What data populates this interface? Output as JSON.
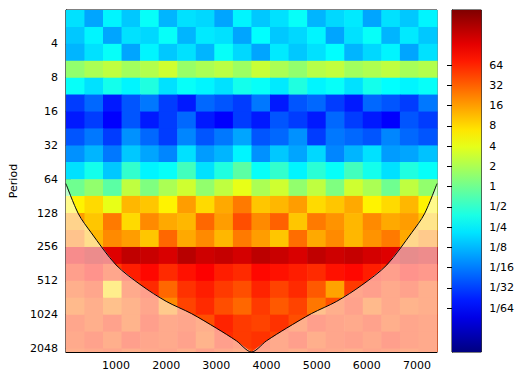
{
  "chart_data": {
    "type": "heatmap",
    "ylabel": "Period",
    "log": "y",
    "grid": false,
    "xlim": [
      0,
      7400
    ],
    "xticks": [
      1000,
      2000,
      3000,
      4000,
      5000,
      6000,
      7000
    ],
    "ylim": [
      2,
      2200
    ],
    "yticks": [
      4,
      8,
      16,
      32,
      64,
      128,
      256,
      512,
      1024,
      2048
    ],
    "x_edges": [
      0,
      370,
      740,
      1110,
      1480,
      1850,
      2220,
      2590,
      2960,
      3330,
      3700,
      4070,
      4440,
      4810,
      5180,
      5550,
      5920,
      6290,
      6660,
      7030,
      7400
    ],
    "period_edges": [
      2,
      2.83,
      4,
      5.66,
      8,
      11.3,
      16,
      22.6,
      32,
      45,
      64,
      90,
      128,
      181,
      256,
      362,
      512,
      724,
      1024,
      1448,
      2048,
      2200
    ],
    "power": [
      [
        0.2,
        0.1,
        0.25,
        0.15,
        0.3,
        0.12,
        0.2,
        0.18,
        0.1,
        0.25,
        0.15,
        0.2,
        0.3,
        0.12,
        0.18,
        0.22,
        0.1,
        0.2,
        0.15,
        0.25
      ],
      [
        0.15,
        0.25,
        0.1,
        0.2,
        0.18,
        0.3,
        0.12,
        0.22,
        0.2,
        0.1,
        0.28,
        0.15,
        0.18,
        0.25,
        0.1,
        0.2,
        0.3,
        0.12,
        0.22,
        0.15
      ],
      [
        0.12,
        0.2,
        0.3,
        0.1,
        0.25,
        0.15,
        0.2,
        0.12,
        0.3,
        0.18,
        0.1,
        0.22,
        0.15,
        0.2,
        0.28,
        0.12,
        0.18,
        0.25,
        0.1,
        0.2
      ],
      [
        1.5,
        2,
        2.5,
        1.8,
        2.2,
        3,
        1.6,
        2,
        2.4,
        1.7,
        2.8,
        2,
        1.5,
        2.3,
        2.6,
        1.8,
        2.1,
        2.5,
        1.9,
        2.2
      ],
      [
        0.3,
        0.2,
        0.35,
        0.25,
        0.4,
        0.2,
        0.3,
        0.25,
        0.2,
        0.35,
        0.3,
        0.22,
        0.4,
        0.25,
        0.3,
        0.2,
        0.35,
        0.28,
        0.25,
        0.3
      ],
      [
        0.03,
        0.05,
        0.02,
        0.04,
        0.06,
        0.03,
        0.02,
        0.05,
        0.04,
        0.03,
        0.06,
        0.02,
        0.04,
        0.05,
        0.03,
        0.02,
        0.05,
        0.04,
        0.03,
        0.06
      ],
      [
        0.02,
        0.03,
        0.015,
        0.04,
        0.02,
        0.03,
        0.05,
        0.02,
        0.015,
        0.03,
        0.02,
        0.04,
        0.03,
        0.02,
        0.05,
        0.03,
        0.02,
        0.015,
        0.04,
        0.03
      ],
      [
        0.04,
        0.06,
        0.03,
        0.08,
        0.05,
        0.03,
        0.07,
        0.04,
        0.06,
        0.1,
        0.04,
        0.05,
        0.08,
        0.03,
        0.06,
        0.05,
        0.04,
        0.07,
        0.05,
        0.04
      ],
      [
        0.08,
        0.12,
        0.06,
        0.15,
        0.1,
        0.07,
        0.2,
        0.09,
        0.12,
        0.25,
        0.08,
        0.15,
        0.1,
        0.18,
        0.07,
        0.12,
        0.2,
        0.09,
        0.1,
        0.14
      ],
      [
        0.2,
        0.35,
        0.15,
        0.5,
        0.25,
        0.3,
        0.6,
        0.2,
        0.4,
        0.8,
        0.3,
        0.5,
        0.25,
        0.45,
        0.3,
        0.6,
        0.35,
        0.2,
        0.4,
        0.3
      ],
      [
        1,
        1.5,
        0.8,
        2.5,
        1.2,
        2,
        3,
        1.5,
        2.5,
        4,
        2,
        3,
        1.5,
        2.5,
        1.2,
        3,
        2,
        1,
        2.5,
        1.5
      ],
      [
        6,
        8,
        4,
        12,
        10,
        6,
        16,
        8,
        14,
        24,
        10,
        12,
        16,
        8,
        10,
        14,
        6,
        8,
        12,
        6
      ],
      [
        16,
        10,
        24,
        8,
        20,
        14,
        12,
        30,
        16,
        40,
        20,
        32,
        10,
        24,
        18,
        12,
        20,
        14,
        16,
        10
      ],
      [
        24,
        12,
        20,
        16,
        10,
        30,
        14,
        20,
        12,
        24,
        16,
        10,
        28,
        14,
        20,
        12,
        18,
        24,
        14,
        20
      ],
      [
        120,
        160,
        140,
        200,
        180,
        150,
        220,
        170,
        190,
        160,
        210,
        180,
        150,
        200,
        170,
        190,
        160,
        140,
        180,
        150
      ],
      [
        60,
        80,
        50,
        70,
        90,
        60,
        80,
        100,
        70,
        60,
        90,
        80,
        70,
        60,
        80,
        90,
        70,
        60,
        80,
        70
      ],
      [
        40,
        50,
        8,
        45,
        60,
        30,
        55,
        70,
        50,
        40,
        65,
        45,
        60,
        35,
        15,
        50,
        60,
        45,
        55,
        40
      ],
      [
        30,
        40,
        25,
        35,
        50,
        20,
        45,
        60,
        40,
        30,
        50,
        35,
        45,
        25,
        40,
        55,
        30,
        45,
        35,
        40
      ],
      [
        50,
        40,
        55,
        35,
        60,
        45,
        50,
        40,
        65,
        50,
        45,
        55,
        40,
        60,
        50,
        45,
        55,
        40,
        50,
        45
      ],
      [
        45,
        55,
        40,
        60,
        50,
        45,
        55,
        35,
        60,
        50,
        55,
        45,
        60,
        40,
        50,
        55,
        45,
        60,
        50,
        45
      ],
      [
        40,
        45,
        50,
        40,
        45,
        50,
        40,
        55,
        45,
        40,
        50,
        45,
        40,
        50,
        45,
        40,
        50,
        45,
        40,
        45
      ]
    ],
    "coi": {
      "x": [
        0,
        250,
        500,
        1000,
        1500,
        2000,
        2500,
        3000,
        3400,
        3700,
        4000,
        4400,
        4900,
        5400,
        5900,
        6400,
        6900,
        7150,
        7400
      ],
      "period": [
        70,
        130,
        190,
        370,
        560,
        780,
        1000,
        1350,
        1750,
        2200,
        1750,
        1350,
        1000,
        780,
        560,
        370,
        190,
        130,
        70
      ]
    },
    "colorbar": {
      "range": [
        0.0035,
        420
      ],
      "ticks": [
        64,
        32,
        16,
        8,
        4,
        2,
        1,
        {
          "value": 0.5,
          "label": "1/2"
        },
        {
          "value": 0.25,
          "label": "1/4"
        },
        {
          "value": 0.125,
          "label": "1/8"
        },
        {
          "value": 0.0625,
          "label": "1/16"
        },
        {
          "value": 0.03125,
          "label": "1/32"
        },
        {
          "value": 0.015625,
          "label": "1/64"
        }
      ]
    }
  }
}
